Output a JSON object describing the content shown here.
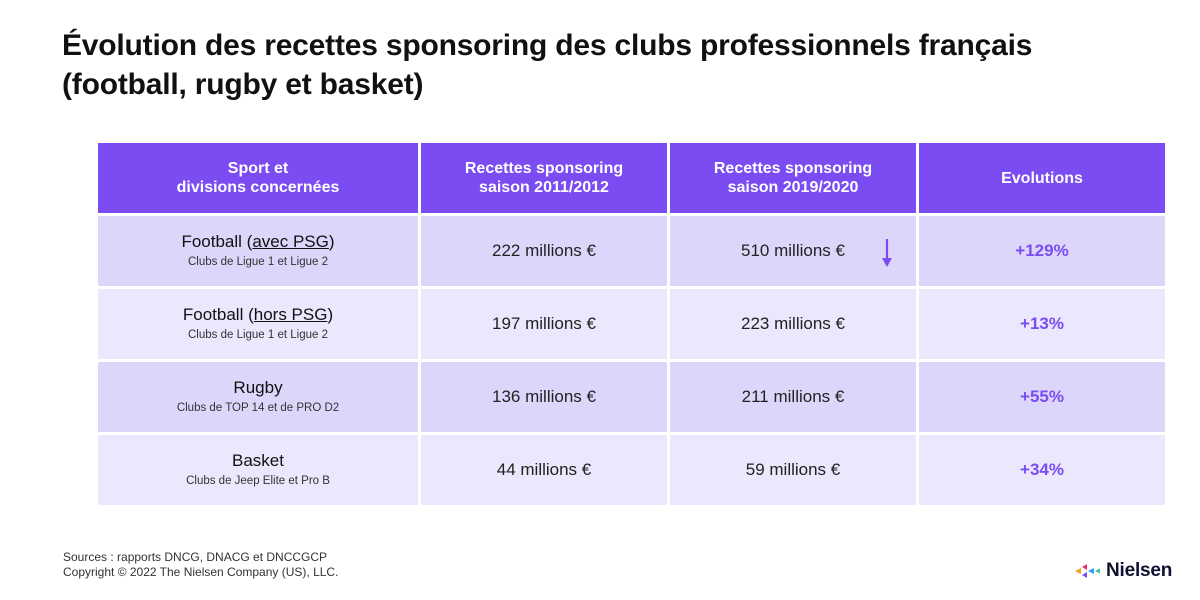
{
  "title": {
    "line1": "Évolution des recettes sponsoring des clubs professionnels français",
    "line2": "(football, rugby et basket)"
  },
  "table": {
    "headers": [
      {
        "line1": "Sport et",
        "line2": "divisions concernées"
      },
      {
        "line1": "Recettes sponsoring",
        "line2": "saison 2011/2012"
      },
      {
        "line1": "Recettes sponsoring",
        "line2": "saison 2019/2020"
      },
      {
        "line1": "Evolutions",
        "line2": ""
      }
    ],
    "rows": [
      {
        "sport_prefix": "Football (",
        "sport_underlined": "avec PSG",
        "sport_suffix": ")",
        "divisions": "Clubs de Ligue 1 et Ligue 2",
        "revenue_2011_2012": "222 millions €",
        "revenue_2019_2020": "510 millions €",
        "evolution": "+129%"
      },
      {
        "sport_prefix": "Football (",
        "sport_underlined": "hors PSG",
        "sport_suffix": ")",
        "divisions": "Clubs de Ligue 1 et Ligue 2",
        "revenue_2011_2012": "197 millions €",
        "revenue_2019_2020": "223 millions €",
        "evolution": "+13%"
      },
      {
        "sport_prefix": "Rugby",
        "sport_underlined": "",
        "sport_suffix": "",
        "divisions": "Clubs de TOP 14 et de PRO D2",
        "revenue_2011_2012": "136 millions €",
        "revenue_2019_2020": "211 millions €",
        "evolution": "+55%"
      },
      {
        "sport_prefix": "Basket",
        "sport_underlined": "",
        "sport_suffix": "",
        "divisions": "Clubs de Jeep Elite et Pro B",
        "revenue_2011_2012": "44 millions €",
        "revenue_2019_2020": "59 millions €",
        "evolution": "+34%"
      }
    ]
  },
  "footer": {
    "sources": "Sources : rapports DNCG, DNACG et DNCCGCP",
    "copyright": "Copyright © 2022 The Nielsen Company (US), LLC."
  },
  "logo": {
    "text": "Nielsen",
    "icon": "nielsen-logo-icon"
  },
  "colors": {
    "accent": "#7b4cf2",
    "row_dark": "#dcd6fb",
    "row_light": "#ebe7fc"
  },
  "icons": {
    "row_arrow": "arrow-down-icon"
  }
}
